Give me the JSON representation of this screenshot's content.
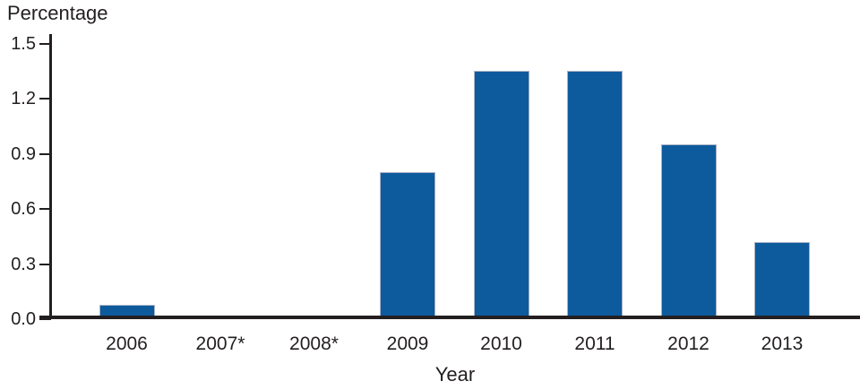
{
  "chart": {
    "y_axis_title": "Percentage",
    "x_axis_title": "Year"
  },
  "chart_data": {
    "type": "bar",
    "title": "",
    "xlabel": "Year",
    "ylabel": "Percentage",
    "categories": [
      "2006",
      "2007*",
      "2008*",
      "2009",
      "2010",
      "2011",
      "2012",
      "2013"
    ],
    "values": [
      0.08,
      0,
      0,
      0.8,
      1.35,
      1.35,
      0.95,
      0.42
    ],
    "ylim": [
      0,
      1.5
    ],
    "yticks": [
      0.0,
      0.3,
      0.6,
      0.9,
      1.2,
      1.5
    ],
    "ytick_labels": [
      "0.0",
      "0.3",
      "0.6",
      "0.9",
      "1.2",
      "1.5"
    ],
    "grid": false,
    "legend_position": "none",
    "bar_color": "#0d5a9d",
    "bar_edge_color": "#aab3c6",
    "axis_color": "#231f20",
    "text_color": "#231f20",
    "background_color": "#ffffff"
  }
}
